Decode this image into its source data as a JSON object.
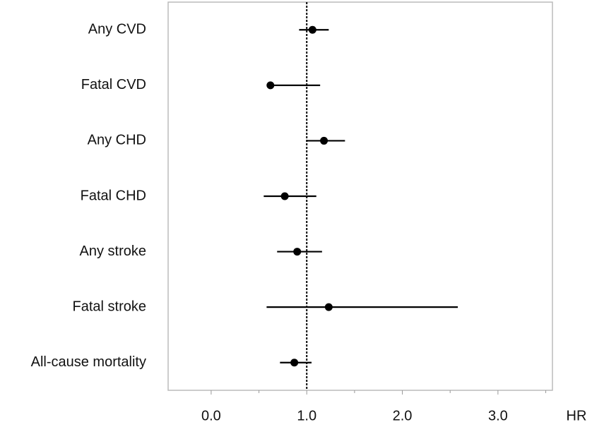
{
  "chart_data": {
    "type": "forest",
    "categories": [
      "Any CVD",
      "Fatal CVD",
      "Any CHD",
      "Fatal CHD",
      "Any stroke",
      "Fatal stroke",
      "All-cause mortality"
    ],
    "values": [
      1.06,
      0.62,
      1.18,
      0.77,
      0.9,
      1.23,
      0.87
    ],
    "lower": [
      0.92,
      0.59,
      1.0,
      0.55,
      0.69,
      0.58,
      0.72
    ],
    "upper": [
      1.23,
      1.14,
      1.4,
      1.1,
      1.16,
      2.58,
      1.05
    ],
    "color": "#000000",
    "x_label": "HR",
    "xlim": [
      -0.45,
      3.57
    ],
    "xticks": [
      {
        "value": 0,
        "label": "0.0"
      },
      {
        "value": 1,
        "label": "1.0"
      },
      {
        "value": 2,
        "label": "2.0"
      },
      {
        "value": 3,
        "label": "3.0"
      }
    ],
    "minor_xticks": [
      0.5,
      1.5,
      2.5,
      3.5
    ],
    "reference_line": 1
  }
}
